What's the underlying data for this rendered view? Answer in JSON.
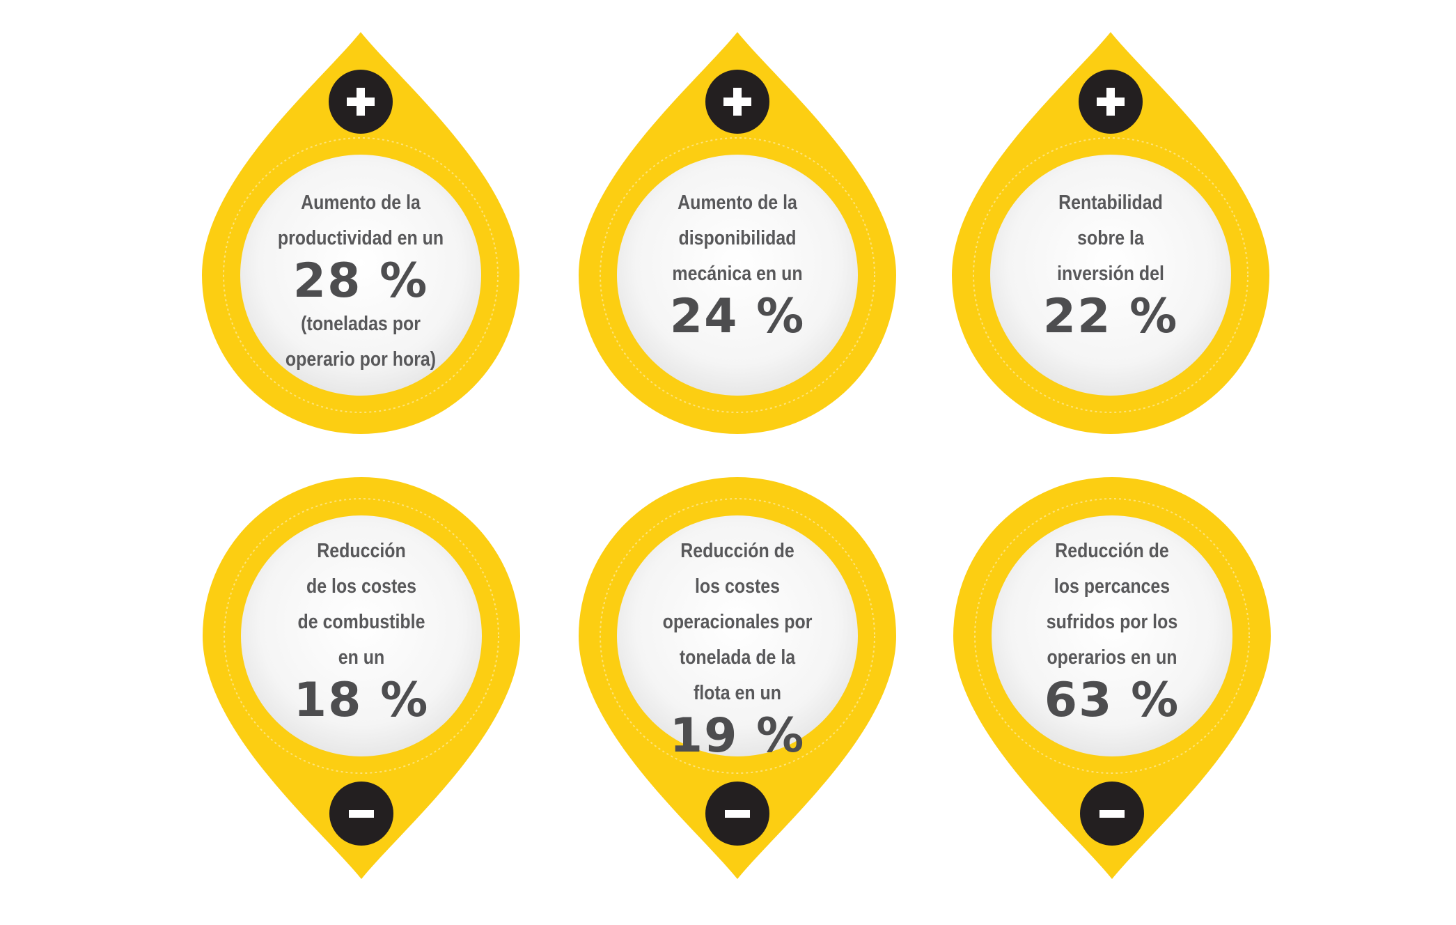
{
  "colors": {
    "yellow": "#fcce12",
    "dark": "#231f20",
    "text": "#58585a",
    "inner": "#f4f4f4"
  },
  "cards": [
    {
      "direction": "up",
      "icon": "plus-icon",
      "lines": [
        "Aumento de la",
        "productividad en un"
      ],
      "value": "28 %",
      "after": [
        "(toneladas por",
        "operario por hora)"
      ]
    },
    {
      "direction": "up",
      "icon": "plus-icon",
      "lines": [
        "Aumento de la",
        "disponibilidad",
        "mecánica en un"
      ],
      "value": "24 %",
      "after": []
    },
    {
      "direction": "up",
      "icon": "plus-icon",
      "lines": [
        "Rentabilidad",
        "sobre la",
        "inversión del"
      ],
      "value": "22 %",
      "after": []
    },
    {
      "direction": "down",
      "icon": "minus-icon",
      "lines": [
        "Reducción",
        "de los costes",
        "de combustible",
        "en un"
      ],
      "value": "18 %",
      "after": []
    },
    {
      "direction": "down",
      "icon": "minus-icon",
      "lines": [
        "Reducción de",
        "los costes",
        "operacionales por",
        "tonelada de la",
        "flota en un"
      ],
      "value": "19 %",
      "after": []
    },
    {
      "direction": "down",
      "icon": "minus-icon",
      "lines": [
        "Reducción de",
        "los percances",
        "sufridos por los",
        "operarios en un"
      ],
      "value": "63 %",
      "after": []
    }
  ]
}
